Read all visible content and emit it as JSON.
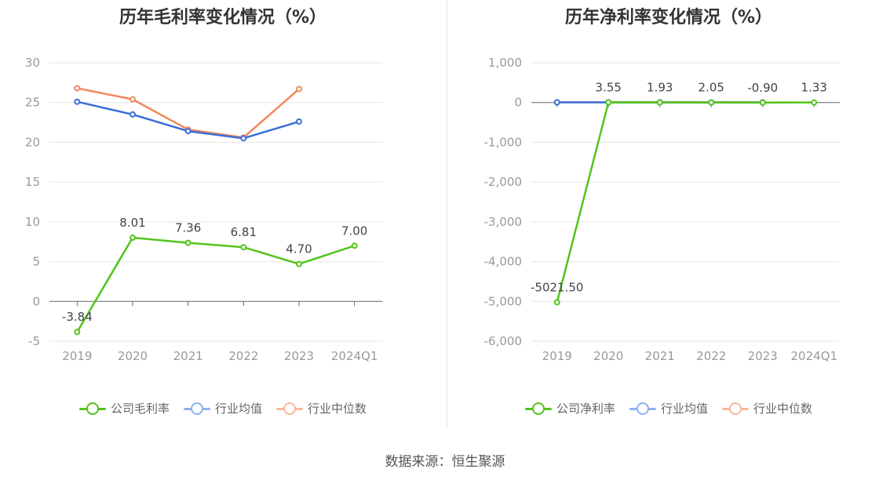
{
  "charts": [
    {
      "title": "历年毛利率变化情况（%）",
      "legend": [
        "公司毛利率",
        "行业均值",
        "行业中位数"
      ]
    },
    {
      "title": "历年净利率变化情况（%）",
      "legend": [
        "公司净利率",
        "行业均值",
        "行业中位数"
      ]
    }
  ],
  "source": "数据来源：恒生聚源",
  "colors": {
    "company": "#52c41a",
    "mean": "#3a6fd8",
    "median": "#f0875a",
    "mean_legend": "#8fb0ef",
    "median_legend": "#f7b79b"
  },
  "chart_data": [
    {
      "type": "line",
      "title": "历年毛利率变化情况（%）",
      "categories": [
        "2019",
        "2020",
        "2021",
        "2022",
        "2023",
        "2024Q1"
      ],
      "ylim": [
        -5,
        30
      ],
      "yticks": [
        30,
        25,
        20,
        15,
        10,
        5,
        0,
        -5
      ],
      "ytick_labels": [
        "30",
        "25",
        "20",
        "15",
        "10",
        "5",
        "0",
        "-5"
      ],
      "series": [
        {
          "name": "公司毛利率",
          "values": [
            -3.84,
            8.01,
            7.36,
            6.81,
            4.7,
            7.0
          ],
          "labels": [
            "-3.84",
            "8.01",
            "7.36",
            "6.81",
            "4.70",
            "7.00"
          ]
        },
        {
          "name": "行业均值",
          "values": [
            25.1,
            23.5,
            21.4,
            20.5,
            22.6,
            null
          ]
        },
        {
          "name": "行业中位数",
          "values": [
            26.8,
            25.4,
            21.6,
            20.6,
            26.7,
            null
          ]
        }
      ],
      "grid": true,
      "legend_position": "bottom"
    },
    {
      "type": "line",
      "title": "历年净利率变化情况（%）",
      "categories": [
        "2019",
        "2020",
        "2021",
        "2022",
        "2023",
        "2024Q1"
      ],
      "ylim": [
        -6000,
        1000
      ],
      "yticks": [
        1000,
        0,
        -1000,
        -2000,
        -3000,
        -4000,
        -5000,
        -6000
      ],
      "ytick_labels": [
        "1,000",
        "0",
        "-1,000",
        "-2,000",
        "-3,000",
        "-4,000",
        "-5,000",
        "-6,000"
      ],
      "series": [
        {
          "name": "公司净利率",
          "values": [
            -5021.5,
            3.55,
            1.93,
            2.05,
            -0.9,
            1.33
          ],
          "labels": [
            "-5021.50",
            "3.55",
            "1.93",
            "2.05",
            "-0.90",
            "1.33"
          ]
        },
        {
          "name": "行业均值",
          "values": [
            4,
            5,
            4,
            3,
            3,
            null
          ]
        },
        {
          "name": "行业中位数",
          "values": [
            6,
            7,
            6,
            5,
            5,
            null
          ]
        }
      ],
      "grid": true,
      "legend_position": "bottom"
    }
  ]
}
